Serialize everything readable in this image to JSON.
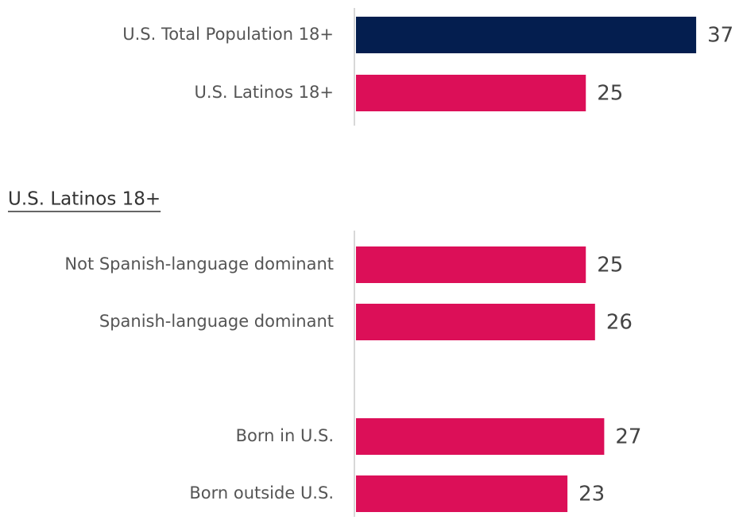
{
  "chart_data": [
    {
      "type": "bar",
      "orientation": "horizontal",
      "categories": [
        "U.S. Total Population 18+",
        "U.S. Latinos 18+"
      ],
      "values": [
        37,
        25
      ],
      "colors": [
        "#041e4f",
        "#dc0f58"
      ]
    },
    {
      "type": "bar",
      "orientation": "horizontal",
      "title": "U.S. Latinos 18+",
      "categories": [
        "Not Spanish-language dominant",
        "Spanish-language dominant",
        null,
        "Born in U.S.",
        "Born outside U.S."
      ],
      "values": [
        25,
        26,
        null,
        27,
        23
      ],
      "colors": [
        "#dc0f58",
        "#dc0f58",
        null,
        "#dc0f58",
        "#dc0f58"
      ]
    }
  ]
}
